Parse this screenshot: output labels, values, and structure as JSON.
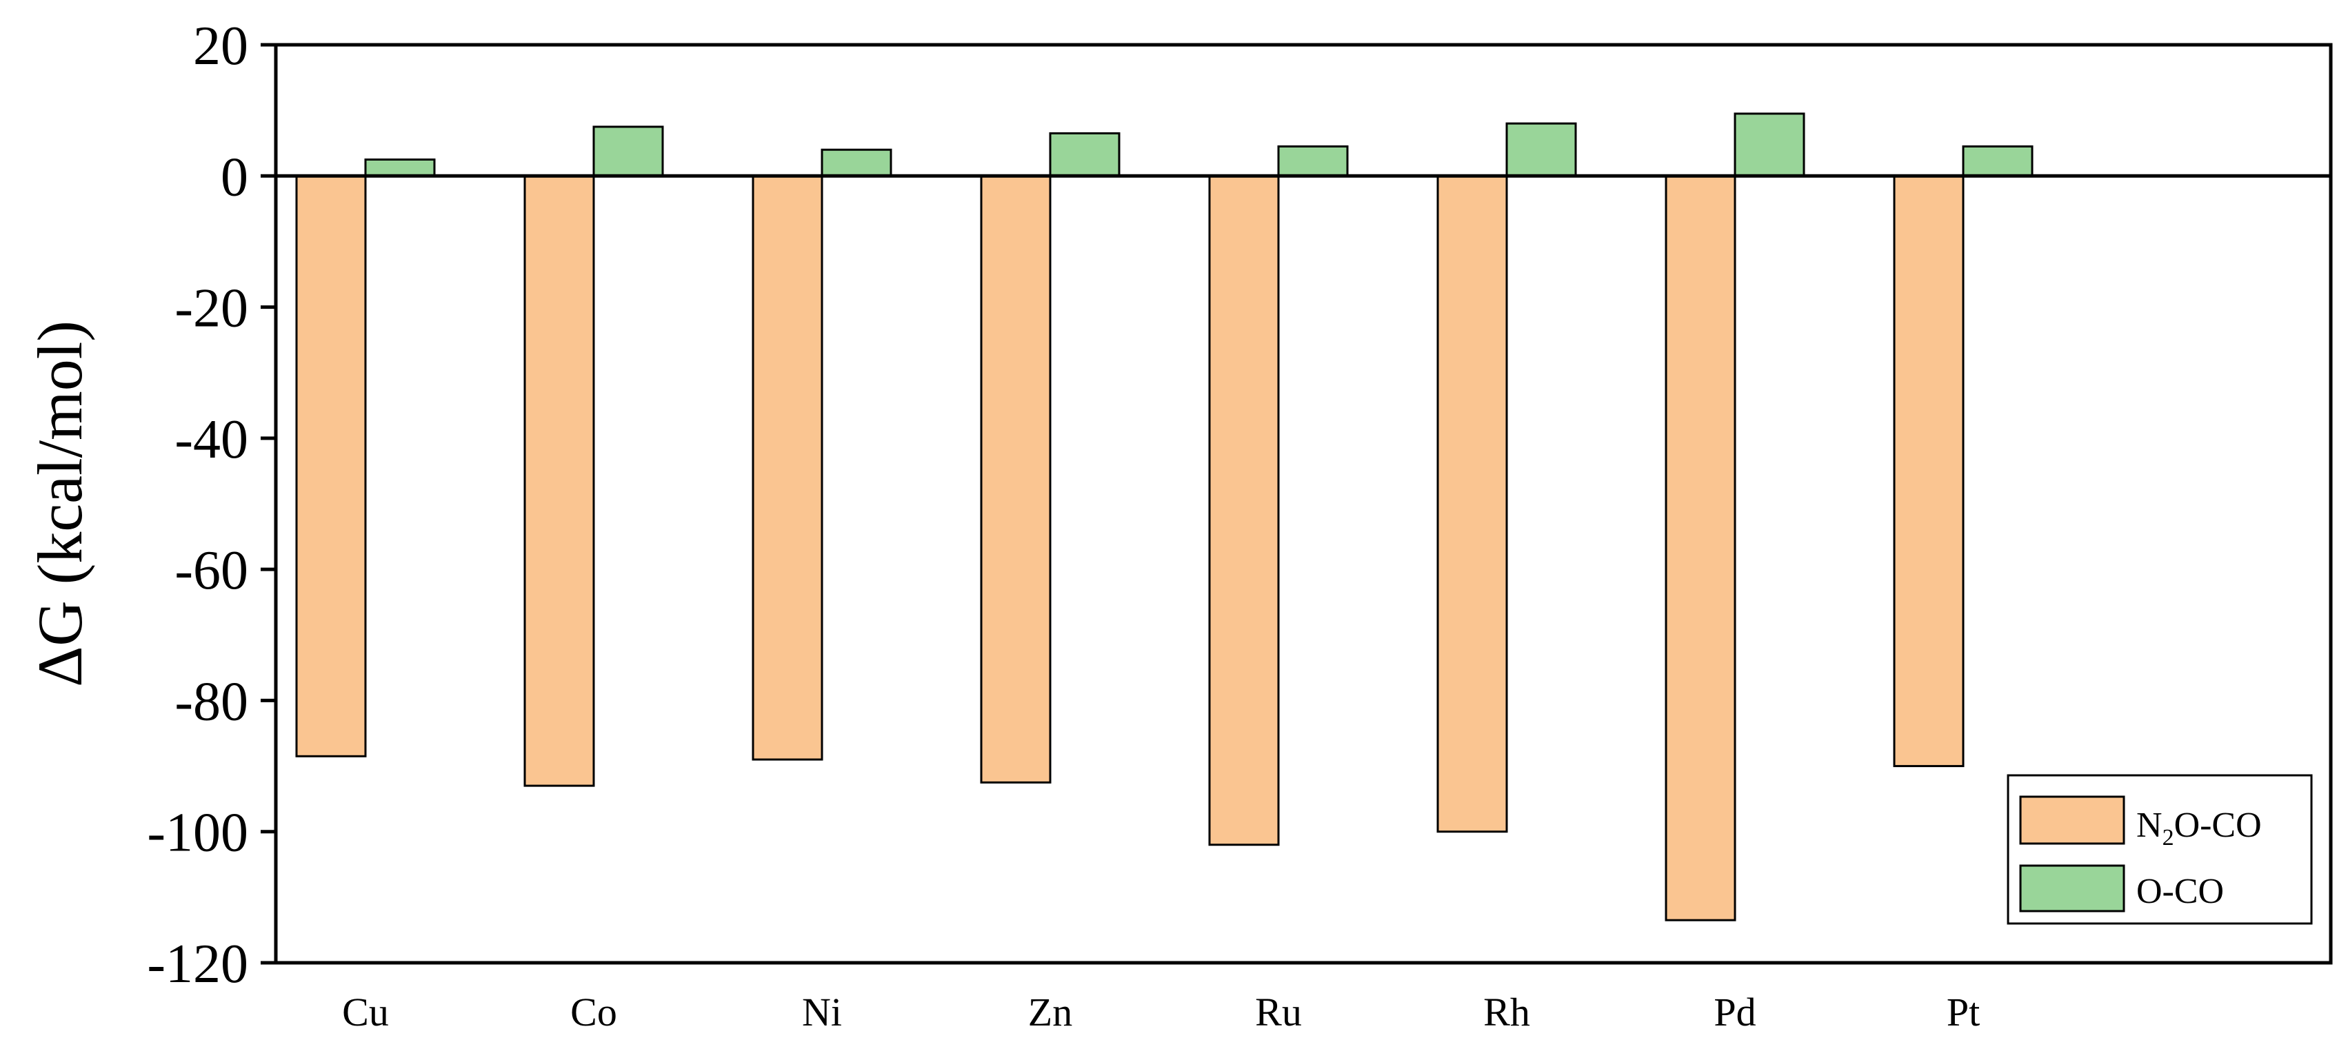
{
  "chart_data": {
    "type": "bar",
    "title": "",
    "xlabel": "",
    "ylabel": "ΔG (kcal/mol)",
    "ylim": [
      -120,
      20
    ],
    "yticks": [
      20,
      0,
      -20,
      -40,
      -60,
      -80,
      -100,
      -120
    ],
    "ytick_labels": [
      "20",
      "0",
      "-20",
      "-40",
      "-60",
      "-80",
      "-100",
      "-120"
    ],
    "categories": [
      "Cu",
      "Co",
      "Ni",
      "Zn",
      "Ru",
      "Rh",
      "Pd",
      "Pt"
    ],
    "grid": false,
    "legend_position": "bottom-right",
    "series": [
      {
        "name": "N2O-CO",
        "legend_main": "N",
        "legend_sub": "2",
        "legend_rest": "O-CO",
        "color": "#fac591",
        "values": [
          -88.5,
          -93.0,
          -89.0,
          -92.5,
          -102.0,
          -100.0,
          -113.5,
          -90.0
        ]
      },
      {
        "name": "O-CO",
        "legend_main": "O-CO",
        "color": "#99d599",
        "values": [
          2.5,
          7.5,
          4.0,
          6.5,
          4.5,
          8.0,
          9.5,
          4.5
        ]
      }
    ]
  }
}
